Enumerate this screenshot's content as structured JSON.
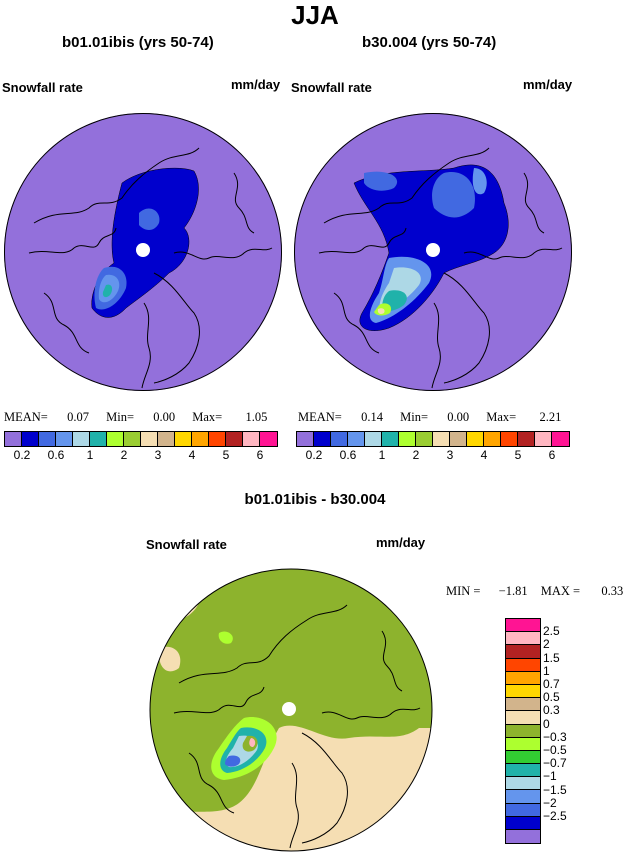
{
  "figure": {
    "season": "JJA",
    "variable": "Snowfall rate",
    "units": "mm/day"
  },
  "panels": [
    {
      "subtitle": "b01.01ibis (yrs 50-74)",
      "label": "Snowfall rate",
      "units": "mm/day",
      "stats": {
        "mean_label": "MEAN=",
        "mean": "0.07",
        "min_label": "Min=",
        "min": "0.00",
        "max_label": "Max=",
        "max": "1.05"
      }
    },
    {
      "subtitle": "b30.004 (yrs 50-74)",
      "label": "Snowfall rate",
      "units": "mm/day",
      "stats": {
        "mean_label": "MEAN=",
        "mean": "0.14",
        "min_label": "Min=",
        "min": "0.00",
        "max_label": "Max=",
        "max": "2.21"
      }
    }
  ],
  "diff_panel": {
    "title": "b01.01ibis - b30.004",
    "label": "Snowfall rate",
    "units": "mm/day",
    "stats": {
      "min_label": "MIN =",
      "min": "−1.81",
      "max_label": "MAX =",
      "max": "0.33"
    }
  },
  "colorbar_abs": {
    "colors": [
      "#9370db",
      "#0000cd",
      "#4169e1",
      "#6495ed",
      "#add8e6",
      "#20b2aa",
      "#adff2f",
      "#9acd32",
      "#f5deb3",
      "#d2b48c",
      "#ffd700",
      "#ffa500",
      "#ff4500",
      "#b22222",
      "#ffb6c1",
      "#ff1493"
    ],
    "tick_labels": [
      "0.2",
      "0.6",
      "1",
      "2",
      "3",
      "4",
      "5",
      "6"
    ]
  },
  "colorbar_diff": {
    "colors_top_to_bottom": [
      "#ff1493",
      "#ffb6c1",
      "#b22222",
      "#ff4500",
      "#ffa500",
      "#ffd700",
      "#d2b48c",
      "#f5deb3",
      "#8db32d",
      "#adff2f",
      "#32cd32",
      "#20b2aa",
      "#add8e6",
      "#6495ed",
      "#4169e1",
      "#0000cd",
      "#9370db"
    ],
    "tick_labels": [
      "2.5",
      "2",
      "1.5",
      "1",
      "0.7",
      "0.5",
      "0.3",
      "0",
      "−0.3",
      "−0.5",
      "−0.7",
      "−1",
      "−1.5",
      "−2",
      "−2.5"
    ]
  },
  "chart_data": [
    {
      "type": "heatmap",
      "title": "b01.01ibis (yrs 50-74)",
      "projection": "north polar stereographic",
      "variable": "Snowfall rate",
      "units": "mm/day",
      "mean": 0.07,
      "min": 0.0,
      "max": 1.05,
      "levels": [
        0.2,
        0.6,
        1,
        2,
        3,
        4,
        5,
        6
      ]
    },
    {
      "type": "heatmap",
      "title": "b30.004 (yrs 50-74)",
      "projection": "north polar stereographic",
      "variable": "Snowfall rate",
      "units": "mm/day",
      "mean": 0.14,
      "min": 0.0,
      "max": 2.21,
      "levels": [
        0.2,
        0.6,
        1,
        2,
        3,
        4,
        5,
        6
      ]
    },
    {
      "type": "heatmap",
      "title": "b01.01ibis - b30.004",
      "projection": "north polar stereographic",
      "variable": "Snowfall rate",
      "units": "mm/day",
      "min": -1.81,
      "max": 0.33,
      "levels": [
        -2.5,
        -2,
        -1.5,
        -1,
        -0.7,
        -0.5,
        -0.3,
        0,
        0.3,
        0.5,
        0.7,
        1,
        1.5,
        2,
        2.5
      ]
    }
  ]
}
